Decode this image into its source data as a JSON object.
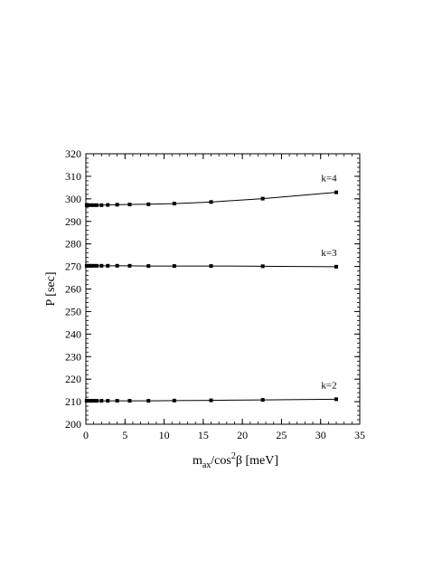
{
  "chart_data": {
    "type": "line",
    "xlabel_parts": {
      "base": "m",
      "sub": "ax",
      "mid": "/cos",
      "sup": "2",
      "tail": "β [meV]"
    },
    "ylabel": "P [sec]",
    "xlim": [
      0,
      35
    ],
    "ylim": [
      200,
      320
    ],
    "xticks": [
      0,
      5,
      10,
      15,
      20,
      25,
      30,
      35
    ],
    "yticks": [
      200,
      210,
      220,
      230,
      240,
      250,
      260,
      270,
      280,
      290,
      300,
      310,
      320
    ],
    "x": [
      0.1,
      0.35,
      0.7,
      1.0,
      1.4,
      2.0,
      2.8,
      4.0,
      5.6,
      8.0,
      11.3,
      16.0,
      22.6,
      32.0
    ],
    "series": [
      {
        "name": "k=4",
        "values": [
          297.2,
          297.2,
          297.2,
          297.2,
          297.2,
          297.2,
          297.3,
          297.4,
          297.5,
          297.6,
          297.9,
          298.6,
          300.1,
          302.9
        ]
      },
      {
        "name": "k=3",
        "values": [
          270.3,
          270.3,
          270.3,
          270.3,
          270.3,
          270.3,
          270.3,
          270.3,
          270.3,
          270.2,
          270.2,
          270.2,
          270.1,
          269.9
        ]
      },
      {
        "name": "k=2",
        "values": [
          210.4,
          210.4,
          210.4,
          210.4,
          210.4,
          210.4,
          210.4,
          210.4,
          210.4,
          210.4,
          210.5,
          210.6,
          210.8,
          211.1
        ]
      }
    ],
    "grid": false,
    "legend": "inline-labels",
    "line_color": "#000000",
    "marker": "square"
  }
}
